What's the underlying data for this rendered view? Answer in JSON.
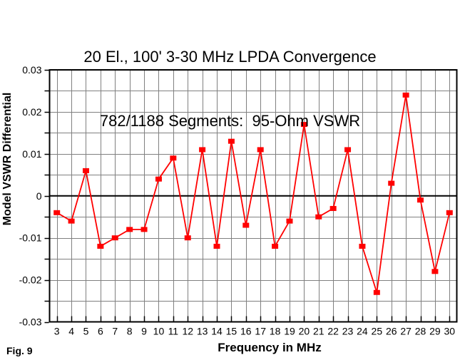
{
  "figure_label": "Fig. 9",
  "title_line1": "20 El., 100' 3-30 MHz LPDA Convergence",
  "title_line2": "782/1188 Segments:  95-Ohm VSWR",
  "chart_data": {
    "type": "line",
    "title": "20 El., 100' 3-30 MHz LPDA Convergence — 782/1188 Segments: 95-Ohm VSWR",
    "xlabel": "Frequency in MHz",
    "ylabel": "Model VSWR Differential",
    "x": [
      3,
      4,
      5,
      6,
      7,
      8,
      9,
      10,
      11,
      12,
      13,
      14,
      15,
      16,
      17,
      18,
      19,
      20,
      21,
      22,
      23,
      24,
      25,
      26,
      27,
      28,
      29,
      30
    ],
    "values": [
      -0.004,
      -0.006,
      0.006,
      -0.012,
      -0.01,
      -0.008,
      -0.008,
      0.004,
      0.009,
      -0.01,
      0.011,
      -0.012,
      0.013,
      -0.007,
      0.011,
      -0.012,
      -0.006,
      0.017,
      -0.005,
      -0.003,
      0.011,
      -0.012,
      -0.023,
      0.003,
      0.024,
      -0.001,
      -0.018,
      -0.004
    ],
    "xlim": [
      3,
      30
    ],
    "ylim": [
      -0.03,
      0.03
    ],
    "x_tick_labels": [
      "3",
      "4",
      "5",
      "6",
      "7",
      "8",
      "9",
      "10",
      "11",
      "12",
      "13",
      "14",
      "15",
      "16",
      "17",
      "18",
      "19",
      "20",
      "21",
      "22",
      "23",
      "24",
      "25",
      "26",
      "27",
      "28",
      "29",
      "30"
    ],
    "y_major_ticks": [
      0.03,
      0.02,
      0.01,
      0,
      -0.01,
      -0.02,
      -0.03
    ],
    "y_tick_labels": [
      "0.03",
      "0.02",
      "0.01",
      "0",
      "-0.01",
      "-0.02",
      "-0.03"
    ],
    "y_minor_step": 0.005,
    "grid": true,
    "legend": "none",
    "marker": "square",
    "line_color": "#ff0000",
    "marker_color": "#ff0000",
    "grid_color": "#808080",
    "axis_color": "#000000",
    "zero_line_color": "#000000",
    "background_color": "#ffffff"
  }
}
